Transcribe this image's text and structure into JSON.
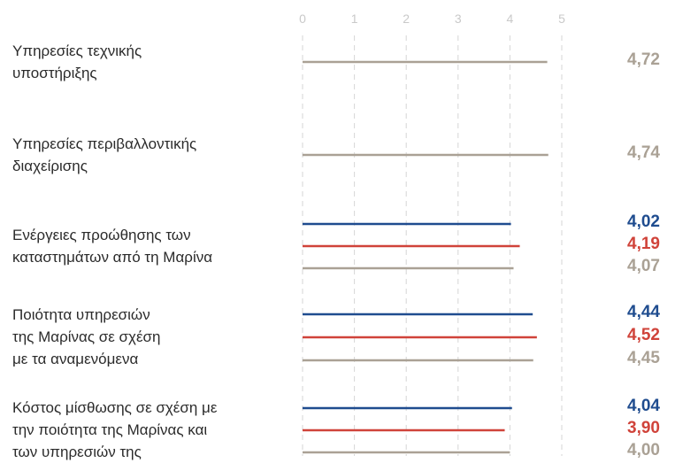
{
  "chart_data": {
    "type": "bar",
    "orientation": "horizontal",
    "xlim": [
      0,
      5
    ],
    "ticks": [
      "0",
      "1",
      "2",
      "3",
      "4",
      "5"
    ],
    "grid": true,
    "legend": "none",
    "colors": {
      "blue": "#1f4c8f",
      "red": "#d0433a",
      "gray": "#aaa195"
    },
    "groups": [
      {
        "label": "Υπηρεσίες τεχνικής\nυποστήριξης",
        "bars": [
          {
            "color": "gray",
            "value": 4.72,
            "text": "4,72"
          }
        ]
      },
      {
        "label": "Υπηρεσίες περιβαλλοντικής\nδιαχείρισης",
        "bars": [
          {
            "color": "gray",
            "value": 4.74,
            "text": "4,74"
          }
        ]
      },
      {
        "label": "Ενέργειες προώθησης των\nκαταστημάτων από τη Μαρίνα",
        "bars": [
          {
            "color": "blue",
            "value": 4.02,
            "text": "4,02"
          },
          {
            "color": "red",
            "value": 4.19,
            "text": "4,19"
          },
          {
            "color": "gray",
            "value": 4.07,
            "text": "4,07"
          }
        ]
      },
      {
        "label": "Ποιότητα υπηρεσιών\nτης Μαρίνας σε σχέση\nμε τα αναμενόμενα",
        "bars": [
          {
            "color": "blue",
            "value": 4.44,
            "text": "4,44"
          },
          {
            "color": "red",
            "value": 4.52,
            "text": "4,52"
          },
          {
            "color": "gray",
            "value": 4.45,
            "text": "4,45"
          }
        ]
      },
      {
        "label": "Κόστος μίσθωσης σε σχέση με\nτην ποιότητα της Μαρίνας και\nτων υπηρεσιών της",
        "bars": [
          {
            "color": "blue",
            "value": 4.04,
            "text": "4,04"
          },
          {
            "color": "red",
            "value": 3.9,
            "text": "3,90"
          },
          {
            "color": "gray",
            "value": 4.0,
            "text": "4,00"
          }
        ]
      }
    ]
  }
}
